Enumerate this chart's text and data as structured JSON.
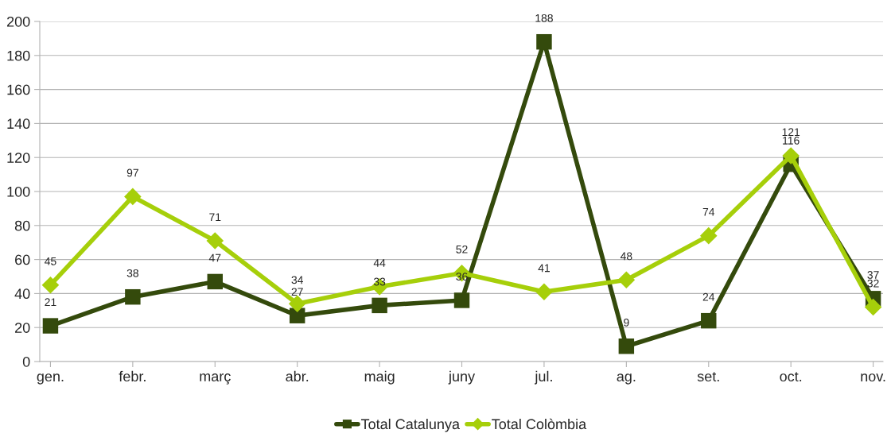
{
  "chart_data": {
    "type": "line",
    "categories": [
      "gen.",
      "febr.",
      "març",
      "abr.",
      "maig",
      "juny",
      "jul.",
      "ag.",
      "set.",
      "oct.",
      "nov."
    ],
    "series": [
      {
        "name": "Total Catalunya",
        "color": "#344a0c",
        "marker": "square",
        "values": [
          21,
          38,
          47,
          27,
          33,
          36,
          188,
          9,
          24,
          116,
          37
        ]
      },
      {
        "name": "Total Colòmbia",
        "color": "#a6cf0a",
        "marker": "diamond",
        "values": [
          45,
          97,
          71,
          34,
          44,
          52,
          41,
          48,
          74,
          121,
          32
        ]
      }
    ],
    "ylim": [
      0,
      200
    ],
    "yticks": [
      0,
      20,
      40,
      60,
      80,
      100,
      120,
      140,
      160,
      180,
      200
    ],
    "grid": "y",
    "legend": "bottom",
    "data_labels": true,
    "line_style": "solid"
  }
}
